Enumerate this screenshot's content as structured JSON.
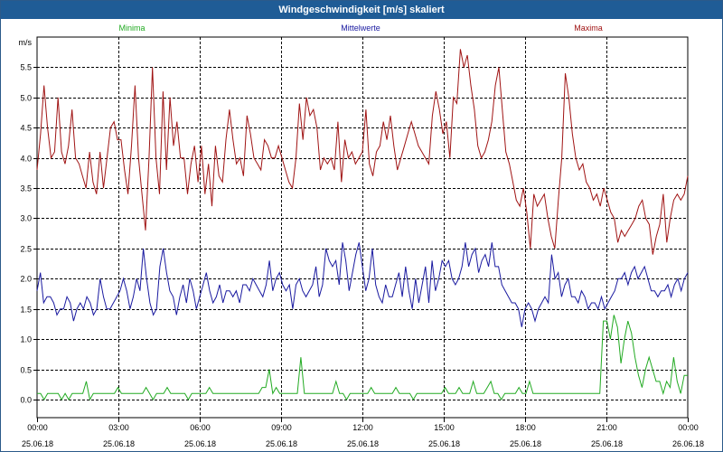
{
  "window": {
    "title": "Windgeschwindigkeit [m/s] skaliert"
  },
  "chart_data": {
    "type": "line",
    "title": "Windgeschwindigkeit [m/s] skaliert",
    "ylabel": "m/s",
    "ylim": [
      -0.3,
      6.0
    ],
    "y_ticks": [
      "0.0",
      "0.5",
      "1.0",
      "1.5",
      "2.0",
      "2.5",
      "3.0",
      "3.5",
      "4.0",
      "4.5",
      "5.0",
      "5.5"
    ],
    "y_tick_values": [
      0,
      0.5,
      1.0,
      1.5,
      2.0,
      2.5,
      3.0,
      3.5,
      4.0,
      4.5,
      5.0,
      5.5
    ],
    "x_range_hours": [
      0,
      24
    ],
    "x_ticks": [
      {
        "time": "00:00",
        "date": "25.06.18",
        "hour": 0
      },
      {
        "time": "03:00",
        "date": "25.06.18",
        "hour": 3
      },
      {
        "time": "06:00",
        "date": "25.06.18",
        "hour": 6
      },
      {
        "time": "09:00",
        "date": "25.06.18",
        "hour": 9
      },
      {
        "time": "12:00",
        "date": "25.06.18",
        "hour": 12
      },
      {
        "time": "15:00",
        "date": "25.06.18",
        "hour": 15
      },
      {
        "time": "18:00",
        "date": "25.06.18",
        "hour": 18
      },
      {
        "time": "21:00",
        "date": "25.06.18",
        "hour": 21
      },
      {
        "time": "00:00",
        "date": "26.06.18",
        "hour": 24
      }
    ],
    "legend": [
      "Minima",
      "Mittelwerte",
      "Maxima"
    ],
    "colors": {
      "Minima": "#22aa22",
      "Mittelwerte": "#1a1aa0",
      "Maxima": "#a01414",
      "grid": "#000000"
    },
    "series": [
      {
        "name": "Minima",
        "color": "#22aa22",
        "values": [
          0.1,
          0.1,
          0.0,
          0.1,
          0.1,
          0.1,
          0.1,
          0.0,
          0.1,
          0.0,
          0.1,
          0.1,
          0.1,
          0.1,
          0.3,
          0.0,
          0.1,
          0.1,
          0.1,
          0.1,
          0.1,
          0.1,
          0.1,
          0.2,
          0.1,
          0.1,
          0.1,
          0.1,
          0.1,
          0.1,
          0.1,
          0.2,
          0.1,
          0.0,
          0.1,
          0.1,
          0.1,
          0.2,
          0.1,
          0.1,
          0.1,
          0.1,
          0.1,
          0.0,
          0.1,
          0.1,
          0.1,
          0.1,
          0.1,
          0.2,
          0.1,
          0.1,
          0.1,
          0.1,
          0.1,
          0.1,
          0.1,
          0.1,
          0.1,
          0.1,
          0.1,
          0.1,
          0.1,
          0.1,
          0.2,
          0.2,
          0.5,
          0.1,
          0.2,
          0.1,
          0.1,
          0.1,
          0.1,
          0.1,
          0.1,
          0.7,
          0.1,
          0.1,
          0.1,
          0.1,
          0.1,
          0.1,
          0.1,
          0.1,
          0.1,
          0.3,
          0.1,
          0.1,
          0.0,
          0.1,
          0.1,
          0.1,
          0.1,
          0.1,
          0.1,
          0.2,
          0.1,
          0.1,
          0.1,
          0.1,
          0.1,
          0.1,
          0.2,
          0.1,
          0.1,
          0.1,
          0.1,
          0.0,
          0.1,
          0.1,
          0.1,
          0.1,
          0.1,
          0.1,
          0.1,
          0.1,
          0.2,
          0.1,
          0.1,
          0.1,
          0.2,
          0.1,
          0.1,
          0.1,
          0.3,
          0.1,
          0.1,
          0.1,
          0.2,
          0.3,
          0.1,
          0.1,
          0.0,
          0.1,
          0.1,
          0.1,
          0.1,
          0.2,
          0.1,
          0.1,
          0.3,
          0.1,
          0.1,
          0.1,
          0.1,
          0.1,
          0.1,
          0.1,
          0.1,
          0.1,
          0.1,
          0.1,
          0.1,
          0.1,
          0.1,
          0.1,
          0.1,
          0.1,
          0.1,
          0.1,
          0.1,
          1.3,
          1.3,
          1.0,
          1.4,
          1.2,
          0.6,
          1.0,
          1.3,
          1.1,
          0.7,
          0.4,
          0.2,
          0.5,
          0.7,
          0.5,
          0.3,
          0.3,
          0.1,
          0.3,
          0.2,
          0.7,
          0.3,
          0.1,
          0.4,
          0.4
        ]
      },
      {
        "name": "Mittelwerte",
        "color": "#1a1aa0",
        "values": [
          1.8,
          2.1,
          1.6,
          1.7,
          1.7,
          1.6,
          1.4,
          1.5,
          1.5,
          1.7,
          1.6,
          1.3,
          1.5,
          1.6,
          1.5,
          1.7,
          1.6,
          1.4,
          1.5,
          2.0,
          1.7,
          1.5,
          1.5,
          1.6,
          1.7,
          1.8,
          2.0,
          1.8,
          1.5,
          1.7,
          2.0,
          1.8,
          2.5,
          2.0,
          1.6,
          1.4,
          1.5,
          2.2,
          2.5,
          2.1,
          1.8,
          1.7,
          1.4,
          1.7,
          1.9,
          1.6,
          2.0,
          1.8,
          1.5,
          1.7,
          1.9,
          2.1,
          1.8,
          1.6,
          1.7,
          1.9,
          1.6,
          1.8,
          1.8,
          1.7,
          1.8,
          1.6,
          1.9,
          1.9,
          1.8,
          2.0,
          1.9,
          1.8,
          1.7,
          1.9,
          2.3,
          1.8,
          2.0,
          2.1,
          1.9,
          1.8,
          1.9,
          1.5,
          1.9,
          2.0,
          1.8,
          1.7,
          1.8,
          1.9,
          2.2,
          1.7,
          1.9,
          2.5,
          2.3,
          2.2,
          2.3,
          1.9,
          2.6,
          2.3,
          1.8,
          2.1,
          2.4,
          2.6,
          2.2,
          1.8,
          2.0,
          2.5,
          1.9,
          1.7,
          1.6,
          1.9,
          1.7,
          1.7,
          1.9,
          2.1,
          1.7,
          2.2,
          1.8,
          1.5,
          2.0,
          1.6,
          1.9,
          2.2,
          1.6,
          2.3,
          1.8,
          2.0,
          2.3,
          2.2,
          2.3,
          2.0,
          1.9,
          2.0,
          2.2,
          2.6,
          2.2,
          2.4,
          2.5,
          2.1,
          2.3,
          2.4,
          2.2,
          2.6,
          2.2,
          2.2,
          1.9,
          1.8,
          1.7,
          1.6,
          1.6,
          1.5,
          1.2,
          1.5,
          1.6,
          1.5,
          1.3,
          1.5,
          1.6,
          1.7,
          1.6,
          2.4,
          2.0,
          2.1,
          1.7,
          1.9,
          2.0,
          1.7,
          1.7,
          1.6,
          1.8,
          1.7,
          1.5,
          1.6,
          1.6,
          1.5,
          1.7,
          1.5,
          1.6,
          1.7,
          1.8,
          2.0,
          2.0,
          2.1,
          1.9,
          2.1,
          2.2,
          2.0,
          2.1,
          2.2,
          2.0,
          1.8,
          1.8,
          1.7,
          1.8,
          1.8,
          1.9,
          1.7,
          1.9,
          2.0,
          1.8,
          2.0,
          2.1
        ]
      },
      {
        "name": "Maxima",
        "color": "#a01414",
        "values": [
          3.8,
          4.4,
          5.2,
          4.5,
          4.0,
          4.1,
          5.0,
          4.1,
          3.9,
          4.2,
          4.8,
          4.0,
          3.9,
          3.7,
          3.5,
          4.1,
          3.6,
          3.4,
          4.1,
          3.5,
          4.0,
          4.5,
          4.6,
          4.3,
          4.3,
          3.8,
          3.4,
          4.2,
          5.2,
          4.0,
          3.4,
          2.8,
          4.0,
          5.5,
          4.0,
          3.4,
          5.1,
          3.8,
          5.0,
          4.2,
          4.6,
          4.0,
          4.0,
          3.4,
          3.9,
          4.2,
          3.6,
          4.2,
          3.4,
          3.9,
          3.2,
          4.2,
          3.7,
          3.6,
          4.3,
          4.8,
          4.3,
          3.9,
          4.0,
          3.7,
          4.7,
          4.4,
          4.0,
          3.9,
          3.8,
          4.3,
          4.2,
          4.0,
          4.0,
          4.2,
          4.0,
          3.8,
          3.6,
          3.5,
          4.0,
          4.9,
          4.3,
          5.0,
          4.7,
          4.8,
          4.5,
          3.8,
          4.0,
          3.9,
          4.0,
          3.8,
          4.6,
          3.6,
          4.3,
          4.0,
          4.1,
          3.9,
          4.0,
          4.1,
          4.8,
          3.9,
          3.7,
          4.1,
          4.2,
          4.6,
          4.3,
          4.7,
          4.2,
          3.8,
          4.0,
          4.2,
          4.4,
          4.6,
          4.4,
          4.2,
          4.1,
          4.0,
          3.9,
          4.7,
          5.1,
          4.8,
          4.4,
          4.6,
          4.0,
          5.0,
          4.9,
          5.8,
          5.5,
          5.7,
          5.2,
          4.8,
          4.2,
          4.0,
          4.1,
          4.3,
          4.6,
          5.2,
          5.5,
          4.8,
          4.1,
          3.9,
          3.6,
          3.3,
          3.2,
          3.5,
          3.1,
          2.5,
          3.4,
          3.2,
          3.3,
          3.4,
          3.0,
          2.7,
          2.5,
          3.3,
          4.0,
          5.4,
          5.0,
          4.4,
          4.0,
          3.8,
          3.9,
          3.6,
          3.5,
          3.3,
          3.4,
          3.2,
          3.5,
          3.3,
          3.1,
          3.0,
          2.6,
          2.8,
          2.7,
          2.8,
          2.9,
          3.0,
          3.2,
          3.3,
          3.0,
          2.9,
          2.4,
          2.7,
          2.9,
          3.4,
          2.6,
          3.0,
          3.3,
          3.4,
          3.3,
          3.4,
          3.7
        ]
      }
    ]
  }
}
